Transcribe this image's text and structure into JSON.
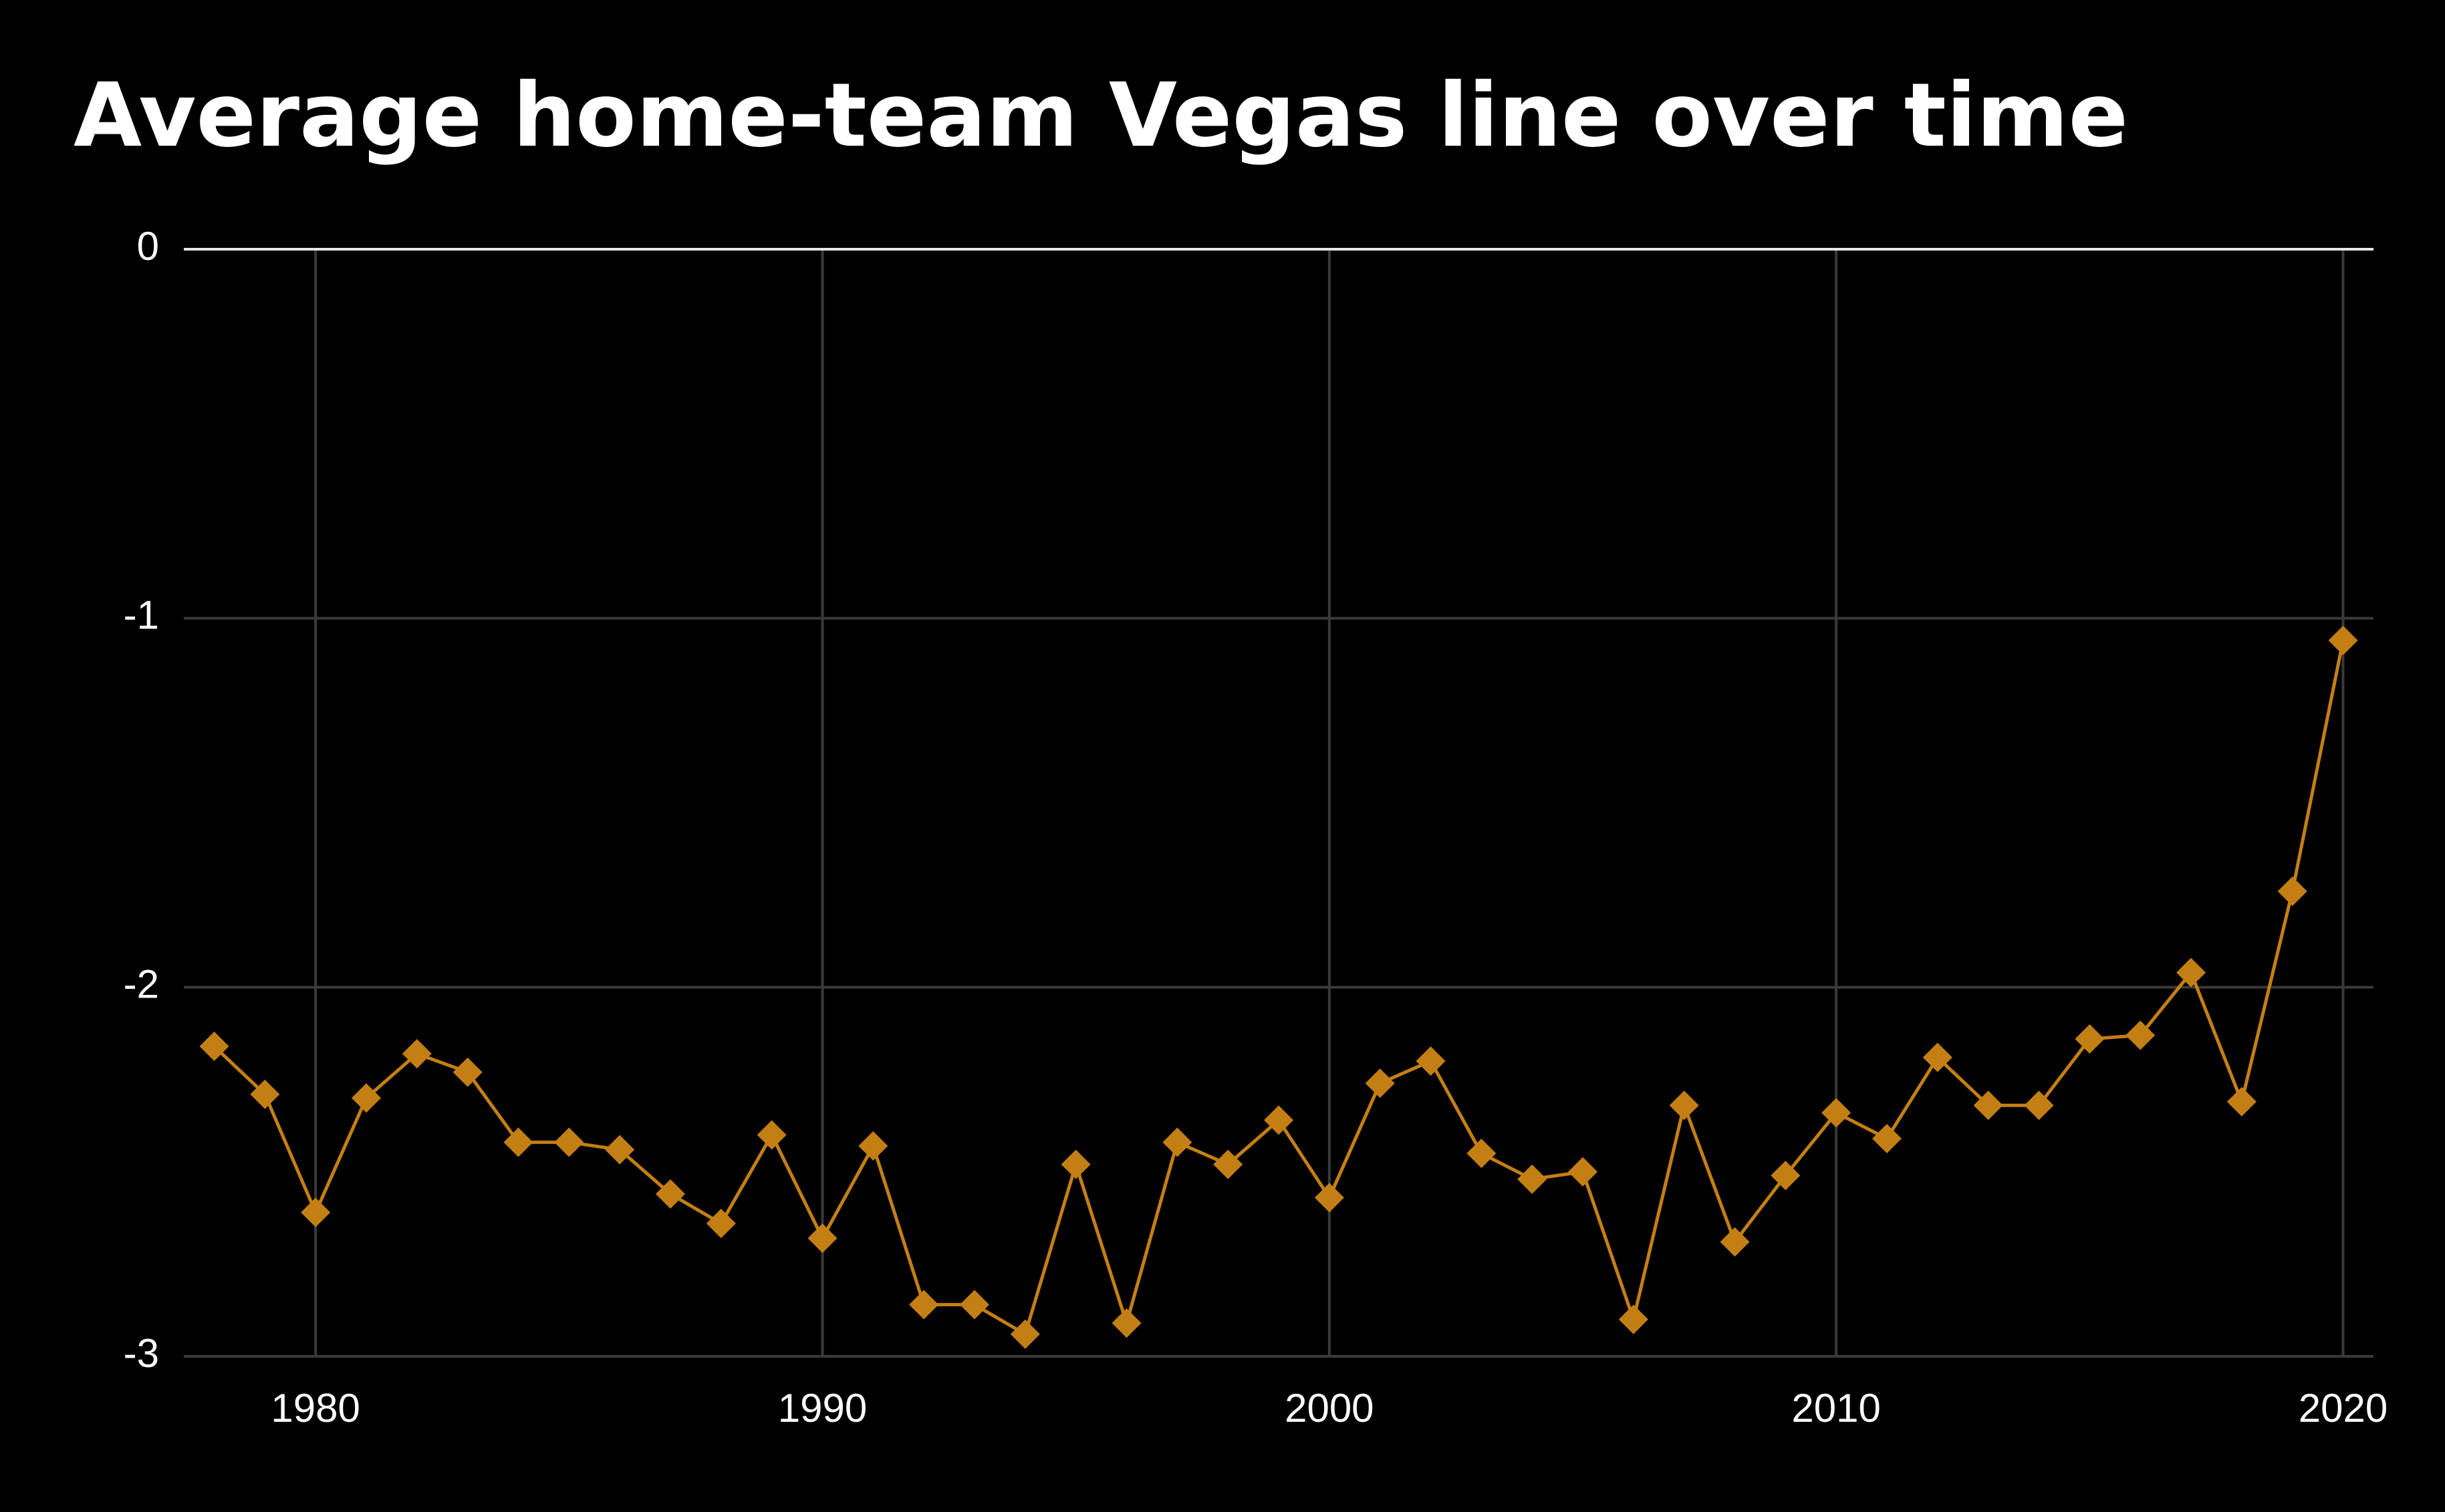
{
  "chart_data": {
    "type": "line",
    "title": "Average home-team Vegas line over time",
    "x": [
      1978,
      1979,
      1980,
      1981,
      1982,
      1983,
      1984,
      1985,
      1986,
      1987,
      1988,
      1989,
      1990,
      1991,
      1992,
      1993,
      1994,
      1995,
      1996,
      1997,
      1998,
      1999,
      2000,
      2001,
      2002,
      2003,
      2004,
      2005,
      2006,
      2007,
      2008,
      2009,
      2010,
      2011,
      2012,
      2013,
      2014,
      2015,
      2016,
      2017,
      2018,
      2019,
      2020
    ],
    "series": [
      {
        "color": "#c47f14",
        "values": [
          -2.16,
          -2.29,
          -2.61,
          -2.3,
          -2.18,
          -2.23,
          -2.42,
          -2.42,
          -2.44,
          -2.56,
          -2.64,
          -2.4,
          -2.68,
          -2.43,
          -2.86,
          -2.86,
          -2.94,
          -2.48,
          -2.91,
          -2.42,
          -2.48,
          -2.36,
          -2.57,
          -2.26,
          -2.2,
          -2.45,
          -2.52,
          -2.5,
          -2.9,
          -2.32,
          -2.69,
          -2.51,
          -2.34,
          -2.41,
          -2.19,
          -2.32,
          -2.32,
          -2.14,
          -2.13,
          -1.96,
          -2.31,
          -1.74,
          -1.06
        ]
      }
    ],
    "xlim": [
      1977.4,
      2020.6
    ],
    "xticks": [
      1980,
      1990,
      2000,
      2010,
      2020
    ],
    "ylim": [
      -3,
      0
    ],
    "yticks": [
      0,
      -1,
      -2,
      -3
    ],
    "grid": true
  }
}
